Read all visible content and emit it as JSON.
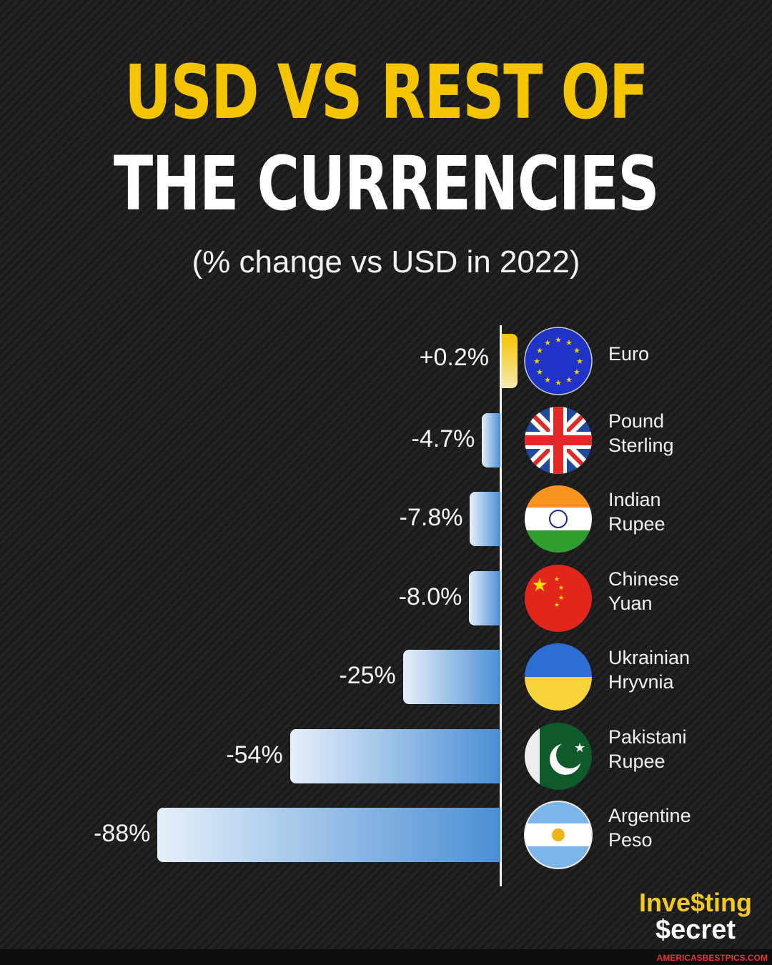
{
  "chart_data": {
    "type": "bar",
    "orientation": "horizontal",
    "title_line1": "USD VS REST OF",
    "title_line2": "THE CURRENCIES",
    "subtitle": "(% change vs USD in 2022)",
    "categories": [
      "Euro",
      "Pound\nSterling",
      "Indian\nRupee",
      "Chinese\nYuan",
      "Ukrainian\nHryvnia",
      "Pakistani\nRupee",
      "Argentine\nPeso"
    ],
    "values": [
      0.2,
      -4.7,
      -7.8,
      -8.0,
      -25,
      -54,
      -88
    ],
    "value_labels": [
      "+0.2%",
      "-4.7%",
      "-7.8%",
      "-8.0%",
      "-25%",
      "-54%",
      "-88%"
    ],
    "flags": [
      "eu-flag-icon",
      "uk-flag-icon",
      "india-flag-icon",
      "china-flag-icon",
      "ukraine-flag-icon",
      "pakistan-flag-icon",
      "argentina-flag-icon"
    ],
    "colors": {
      "positive": "#f5c400",
      "negative": "#4a8fd4",
      "title_accent": "#f5c400"
    }
  },
  "logo": {
    "line1": "Inve$ting",
    "line2": "$ecret"
  },
  "watermark": "AMERICASBESTPICS.COM"
}
